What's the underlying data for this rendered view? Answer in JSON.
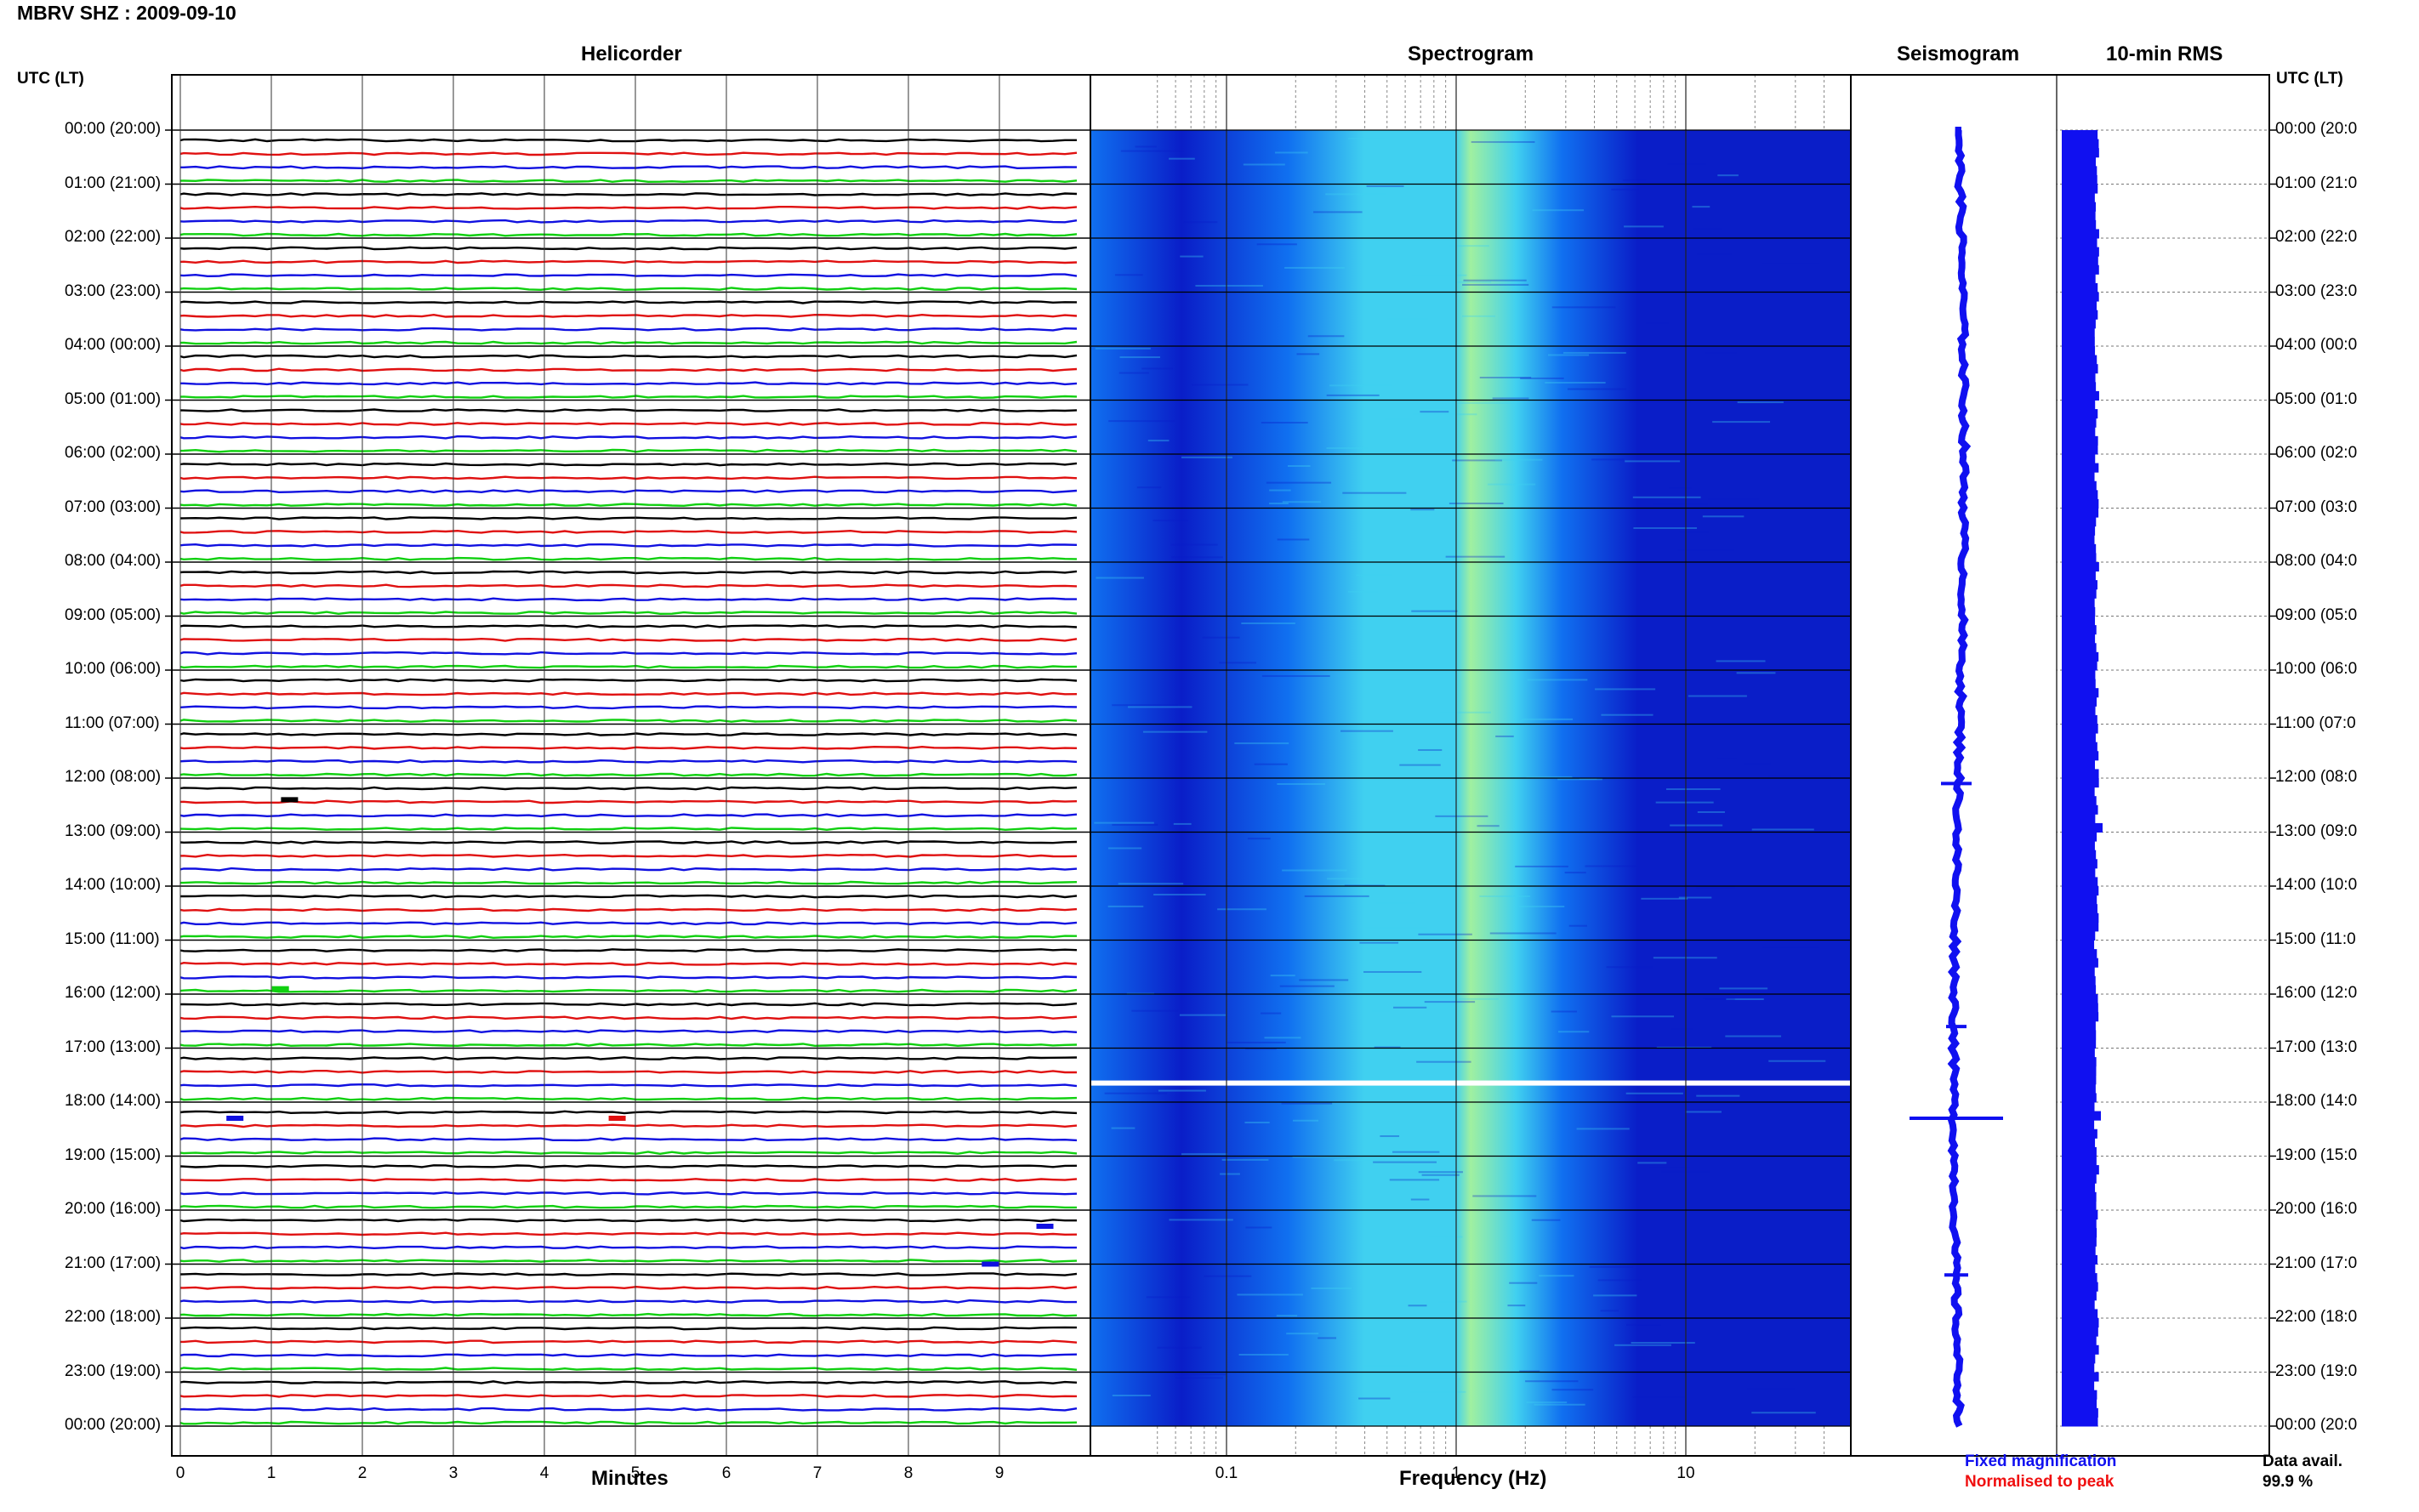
{
  "title": "MBRV SHZ : 2009-09-10",
  "panels": {
    "helicorder": "Helicorder",
    "spectrogram": "Spectrogram",
    "seismogram": "Seismogram",
    "rms": "10-min RMS"
  },
  "utc_label_left": "UTC (LT)",
  "utc_label_right": "UTC (LT)",
  "hours": [
    "00:00 (20:00)",
    "01:00 (21:00)",
    "02:00 (22:00)",
    "03:00 (23:00)",
    "04:00 (00:00)",
    "05:00 (01:00)",
    "06:00 (02:00)",
    "07:00 (03:00)",
    "08:00 (04:00)",
    "09:00 (05:00)",
    "10:00 (06:00)",
    "11:00 (07:00)",
    "12:00 (08:00)",
    "13:00 (09:00)",
    "14:00 (10:00)",
    "15:00 (11:00)",
    "16:00 (12:00)",
    "17:00 (13:00)",
    "18:00 (14:00)",
    "19:00 (15:00)",
    "20:00 (16:00)",
    "21:00 (17:00)",
    "22:00 (18:00)",
    "23:00 (19:00)",
    "00:00 (20:00)"
  ],
  "hours_right": [
    "00:00 (20:0",
    "01:00 (21:0",
    "02:00 (22:0",
    "03:00 (23:0",
    "04:00 (00:0",
    "05:00 (01:0",
    "06:00 (02:0",
    "07:00 (03:0",
    "08:00 (04:0",
    "09:00 (05:0",
    "10:00 (06:0",
    "11:00 (07:0",
    "12:00 (08:0",
    "13:00 (09:0",
    "14:00 (10:0",
    "15:00 (11:0",
    "16:00 (12:0",
    "17:00 (13:0",
    "18:00 (14:0",
    "19:00 (15:0",
    "20:00 (16:0",
    "21:00 (17:0",
    "22:00 (18:0",
    "23:00 (19:0",
    "00:00 (20:0"
  ],
  "helicorder_x_ticks": [
    "0",
    "1",
    "2",
    "3",
    "4",
    "5",
    "6",
    "7",
    "8",
    "9"
  ],
  "helicorder_x_label": "Minutes",
  "spectrogram_x_ticks": [
    "0.1",
    "1",
    "10"
  ],
  "spectrogram_x_label": "Frequency (Hz)",
  "legend": {
    "fixed": "Fixed magnification",
    "normalised": "Normalised to peak",
    "fixed_color": "#1010f0",
    "normalised_color": "#f01010"
  },
  "data_avail": {
    "label": "Data avail.",
    "value": "99.9 %"
  },
  "trace_colors": [
    "#000000",
    "#e01010",
    "#1010e0",
    "#10d010"
  ],
  "spectrogram_colors": {
    "low": "#0a1ec8",
    "mid": "#1070f0",
    "high": "#40d0f0",
    "peak": "#a0f0a0"
  }
}
